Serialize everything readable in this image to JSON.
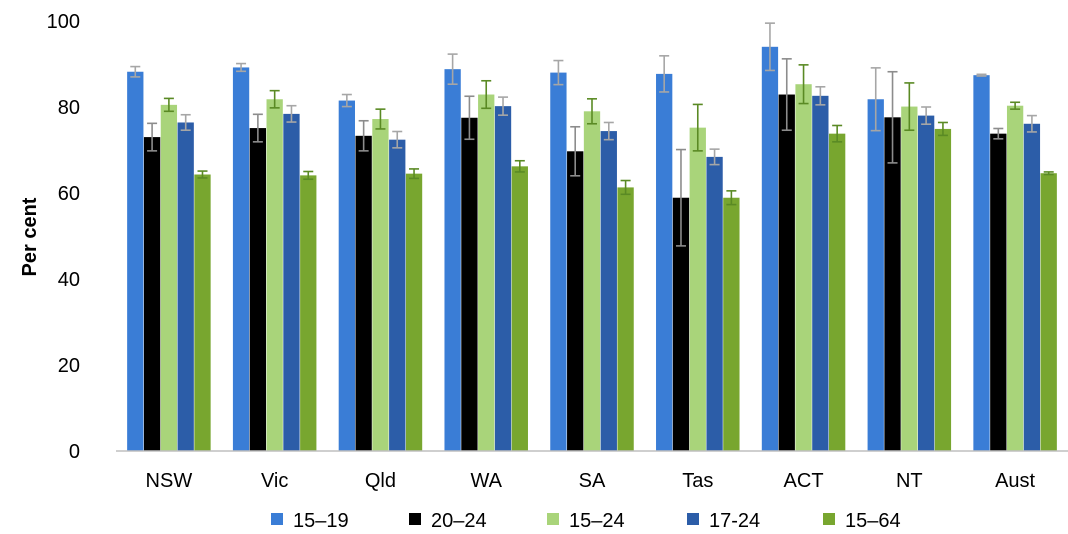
{
  "chart_data": {
    "type": "bar",
    "ylabel": "Per cent",
    "xlabel": "",
    "ylim": [
      0,
      100
    ],
    "yticks": [
      0,
      20,
      40,
      60,
      80,
      100
    ],
    "grid": false,
    "legend_position": "bottom",
    "error_bars": true,
    "categories": [
      "NSW",
      "Vic",
      "Qld",
      "WA",
      "SA",
      "Tas",
      "ACT",
      "NT",
      "Aust"
    ],
    "series": [
      {
        "name": "15–19",
        "color": "#3a7dd6",
        "values": [
          88.2,
          89.2,
          81.5,
          88.8,
          88.0,
          87.7,
          94.0,
          81.8,
          87.4
        ],
        "errors": [
          1.2,
          0.9,
          1.4,
          3.5,
          2.8,
          4.2,
          5.5,
          7.3,
          0.2
        ]
      },
      {
        "name": "20–24",
        "color": "#000000",
        "values": [
          73.0,
          75.1,
          73.3,
          77.5,
          69.7,
          58.9,
          82.9,
          77.6,
          73.8
        ],
        "errors": [
          3.2,
          3.2,
          3.5,
          5.0,
          5.7,
          11.2,
          8.3,
          10.6,
          1.2
        ]
      },
      {
        "name": "15–24",
        "color": "#a9d47a",
        "values": [
          80.5,
          81.8,
          77.2,
          82.9,
          79.0,
          75.2,
          85.3,
          80.1,
          80.3
        ],
        "errors": [
          1.5,
          2.0,
          2.3,
          3.2,
          2.9,
          5.4,
          4.5,
          5.5,
          0.8
        ]
      },
      {
        "name": "17-24",
        "color": "#2c5da8",
        "values": [
          76.4,
          78.4,
          72.4,
          80.2,
          74.4,
          68.4,
          82.6,
          78.0,
          76.1
        ],
        "errors": [
          1.8,
          1.9,
          1.9,
          2.1,
          2.0,
          1.8,
          2.1,
          2.0,
          1.9
        ]
      },
      {
        "name": "15–64",
        "color": "#78a62f",
        "values": [
          64.3,
          64.1,
          64.5,
          66.2,
          61.3,
          58.9,
          73.8,
          74.9,
          64.6
        ],
        "errors": [
          0.8,
          0.9,
          1.1,
          1.3,
          1.6,
          1.6,
          1.9,
          1.5,
          0.3
        ]
      }
    ]
  }
}
